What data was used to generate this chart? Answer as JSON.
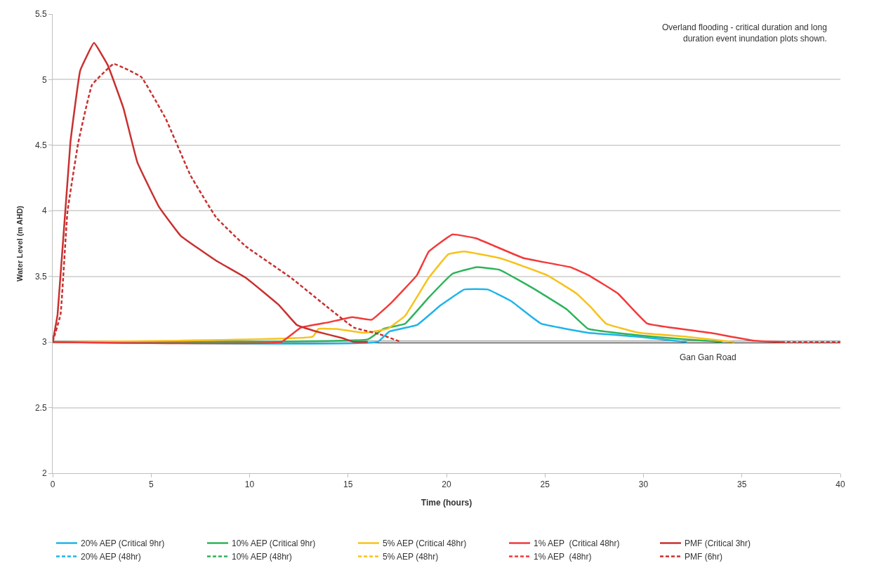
{
  "chart_data": {
    "type": "line",
    "xlabel": "Time (hours)",
    "ylabel": "Water Level (m AHD)",
    "annotations": [
      "Overland flooding - critical duration and long\nduration event inundation plots shown."
    ],
    "xlim": [
      0,
      40
    ],
    "xticks": [
      0,
      5,
      10,
      15,
      20,
      25,
      30,
      35,
      40
    ],
    "ylim": [
      2,
      5.5
    ],
    "yticks": [
      2,
      2.5,
      3,
      3.5,
      4,
      4.5,
      5,
      5.5
    ],
    "grid": "y",
    "legend": "bottom",
    "marker": "none",
    "ref_lines": [
      {
        "axis": "y",
        "value": 3,
        "label": "Gan Gan Road",
        "color": "#3a3a3a"
      }
    ],
    "series": [
      {
        "name": "20% AEP (Critical 9hr)",
        "color": "#1fb4ea",
        "line_style": "solid",
        "x": [
          0,
          16.5,
          17.1,
          18.5,
          19.7,
          20.9,
          22.1,
          23.3,
          24.8,
          27.2,
          29.8,
          32.2
        ],
        "values": [
          3,
          3,
          3.08,
          3.13,
          3.28,
          3.4,
          3.4,
          3.31,
          3.14,
          3.07,
          3.04,
          3.0
        ]
      },
      {
        "name": "10% AEP (Critical 9hr)",
        "color": "#2db35a",
        "line_style": "solid",
        "x": [
          0,
          16.0,
          16.8,
          17.9,
          19.1,
          20.3,
          21.5,
          22.7,
          24.5,
          26.1,
          27.2,
          29.8,
          32.2,
          34
        ],
        "values": [
          3,
          3.02,
          3.1,
          3.14,
          3.34,
          3.52,
          3.57,
          3.55,
          3.4,
          3.25,
          3.1,
          3.05,
          3.02,
          3.0
        ]
      },
      {
        "name": "5% AEP (Critical 48hr)",
        "color": "#f7c21b",
        "line_style": "solid",
        "x": [
          0,
          13.2,
          13.5,
          14.4,
          15.8,
          17.0,
          17.9,
          19.1,
          20.1,
          20.9,
          22.7,
          25.1,
          26.6,
          27.3,
          28.1,
          29.8,
          32.2,
          34.6
        ],
        "values": [
          3,
          3.04,
          3.1,
          3.1,
          3.07,
          3.1,
          3.2,
          3.49,
          3.67,
          3.69,
          3.64,
          3.51,
          3.37,
          3.27,
          3.14,
          3.07,
          3.04,
          3.0
        ]
      },
      {
        "name": "1% AEP  (Critical 48hr)",
        "color": "#f23a3a",
        "line_style": "solid",
        "x": [
          0,
          11.6,
          12.6,
          14.0,
          15.2,
          16.2,
          17.2,
          18.5,
          19.1,
          20.3,
          21.5,
          23.9,
          26.3,
          27.2,
          28.7,
          30.2,
          33.4,
          35.6,
          37
        ],
        "values": [
          3,
          3,
          3.11,
          3.15,
          3.19,
          3.17,
          3.3,
          3.51,
          3.69,
          3.82,
          3.79,
          3.64,
          3.57,
          3.51,
          3.37,
          3.14,
          3.07,
          3.01,
          3.0
        ]
      },
      {
        "name": "PMF (Critical 3hr)",
        "color": "#c8312f",
        "line_style": "solid",
        "x": [
          0,
          0.25,
          0.9,
          1.4,
          2.1,
          2.8,
          3.6,
          4.3,
          5.4,
          6.5,
          8.3,
          9.8,
          11.5,
          12.4,
          13.4,
          14.7,
          15.3,
          16
        ],
        "values": [
          3,
          3.21,
          4.52,
          5.07,
          5.28,
          5.11,
          4.78,
          4.37,
          4.03,
          3.81,
          3.62,
          3.49,
          3.28,
          3.13,
          3.08,
          3.03,
          3.0,
          3.0
        ]
      },
      {
        "name": "20% AEP (48hr)",
        "color": "#1fb4ea",
        "line_style": "dashed"
      },
      {
        "name": "10% AEP (48hr)",
        "color": "#2db35a",
        "line_style": "dashed"
      },
      {
        "name": "5% AEP (48hr)",
        "color": "#f7c21b",
        "line_style": "dashed"
      },
      {
        "name": "1% AEP  (48hr)",
        "color": "#f23a3a",
        "line_style": "dashed",
        "x": [
          37,
          40
        ],
        "values": [
          3,
          3
        ]
      },
      {
        "name": "PMF (6hr)",
        "color": "#c8312f",
        "line_style": "dashed",
        "x": [
          0,
          0.4,
          0.75,
          1.3,
          2.0,
          3.1,
          4.5,
          5.75,
          7.0,
          8.3,
          9.8,
          12.1,
          14.0,
          15.3,
          16.6,
          17.7
        ],
        "values": [
          3,
          3.21,
          3.99,
          4.52,
          4.96,
          5.12,
          5.02,
          4.7,
          4.27,
          3.95,
          3.73,
          3.49,
          3.26,
          3.11,
          3.06,
          3.0
        ]
      }
    ]
  }
}
